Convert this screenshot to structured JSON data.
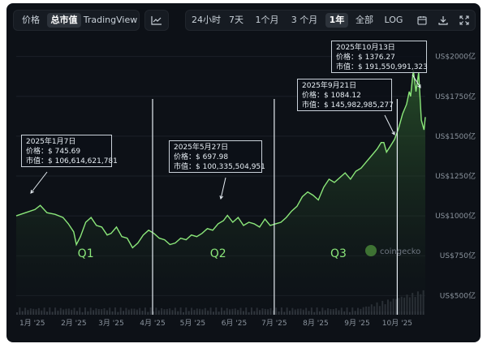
{
  "toolbar": {
    "left_tabs": [
      {
        "label": "价格",
        "active": false
      },
      {
        "label": "总市值",
        "active": true
      },
      {
        "label": "TradingView",
        "active": false
      }
    ],
    "chart_icon": "line-chart-icon",
    "ranges": [
      {
        "label": "24小时",
        "active": false
      },
      {
        "label": "7天",
        "active": false
      },
      {
        "label": "1个月",
        "active": false
      },
      {
        "label": "3 个月",
        "active": false
      },
      {
        "label": "1年",
        "active": true
      },
      {
        "label": "全部",
        "active": false
      },
      {
        "label": "LOG",
        "active": false
      }
    ],
    "icons": [
      "calendar-icon",
      "download-icon",
      "expand-icon"
    ]
  },
  "watermark": "coingecko",
  "quarters": [
    "Q1",
    "Q2",
    "Q3"
  ],
  "annotations": [
    {
      "date": "2025年1月7日",
      "price": "价格：$ 745.69",
      "mcap": "市值：$ 106,614,621,781"
    },
    {
      "date": "2025年5月27日",
      "price": "价格：$ 697.98",
      "mcap": "市值：$ 100,335,504,951"
    },
    {
      "date": "2025年9月21日",
      "price": "价格：$ 1084.12",
      "mcap": "市值：$ 145,982,985,277"
    },
    {
      "date": "2025年10月13日",
      "price": "价格：$ 1376.27",
      "mcap": "市值：$ 191,550,991,323"
    }
  ],
  "colors": {
    "line": "#8be77a",
    "fill": "#2d5a2d",
    "quarter_text": "#8be77a",
    "grid": "#1c2128",
    "axis_text": "#8b949e"
  },
  "chart_data": {
    "type": "area",
    "title": "",
    "xlabel": "",
    "ylabel": "",
    "x_ticks": [
      "1月 '25",
      "2月 '25",
      "3月 '25",
      "4月 '25",
      "5月 '25",
      "6月 '25",
      "7月 '25",
      "8月 '25",
      "9月 '25",
      "10月 '25"
    ],
    "y_ticks": [
      "US$500亿",
      "US$750亿",
      "US$1000亿",
      "US$1250亿",
      "US$1500亿",
      "US$1750亿",
      "US$2000亿"
    ],
    "ylim": [
      400,
      2100
    ],
    "grid": true,
    "quarter_dividers": [
      "2025-04-01",
      "2025-07-01",
      "2025-10-01"
    ],
    "series": [
      {
        "values": [
          [
            "2024-12-20",
            1000
          ],
          [
            "2024-12-27",
            1020
          ],
          [
            "2025-01-03",
            1040
          ],
          [
            "2025-01-07",
            1066
          ],
          [
            "2025-01-12",
            1020
          ],
          [
            "2025-01-18",
            1010
          ],
          [
            "2025-01-24",
            990
          ],
          [
            "2025-01-28",
            950
          ],
          [
            "2025-02-01",
            900
          ],
          [
            "2025-02-03",
            820
          ],
          [
            "2025-02-06",
            870
          ],
          [
            "2025-02-10",
            960
          ],
          [
            "2025-02-14",
            990
          ],
          [
            "2025-02-18",
            940
          ],
          [
            "2025-02-22",
            930
          ],
          [
            "2025-02-26",
            880
          ],
          [
            "2025-03-01",
            890
          ],
          [
            "2025-03-05",
            930
          ],
          [
            "2025-03-09",
            870
          ],
          [
            "2025-03-13",
            860
          ],
          [
            "2025-03-17",
            800
          ],
          [
            "2025-03-21",
            830
          ],
          [
            "2025-03-25",
            880
          ],
          [
            "2025-03-29",
            910
          ],
          [
            "2025-04-02",
            890
          ],
          [
            "2025-04-06",
            860
          ],
          [
            "2025-04-10",
            850
          ],
          [
            "2025-04-14",
            820
          ],
          [
            "2025-04-18",
            830
          ],
          [
            "2025-04-22",
            860
          ],
          [
            "2025-04-26",
            850
          ],
          [
            "2025-04-30",
            880
          ],
          [
            "2025-05-04",
            870
          ],
          [
            "2025-05-08",
            890
          ],
          [
            "2025-05-12",
            920
          ],
          [
            "2025-05-16",
            910
          ],
          [
            "2025-05-20",
            950
          ],
          [
            "2025-05-24",
            970
          ],
          [
            "2025-05-27",
            1003
          ],
          [
            "2025-05-31",
            960
          ],
          [
            "2025-06-04",
            990
          ],
          [
            "2025-06-08",
            940
          ],
          [
            "2025-06-12",
            960
          ],
          [
            "2025-06-16",
            950
          ],
          [
            "2025-06-20",
            930
          ],
          [
            "2025-06-24",
            980
          ],
          [
            "2025-06-28",
            940
          ],
          [
            "2025-07-02",
            950
          ],
          [
            "2025-07-06",
            960
          ],
          [
            "2025-07-10",
            990
          ],
          [
            "2025-07-14",
            1030
          ],
          [
            "2025-07-18",
            1060
          ],
          [
            "2025-07-22",
            1120
          ],
          [
            "2025-07-26",
            1150
          ],
          [
            "2025-07-30",
            1130
          ],
          [
            "2025-08-03",
            1100
          ],
          [
            "2025-08-07",
            1180
          ],
          [
            "2025-08-11",
            1230
          ],
          [
            "2025-08-15",
            1210
          ],
          [
            "2025-08-19",
            1240
          ],
          [
            "2025-08-23",
            1270
          ],
          [
            "2025-08-27",
            1230
          ],
          [
            "2025-08-31",
            1280
          ],
          [
            "2025-09-04",
            1300
          ],
          [
            "2025-09-08",
            1340
          ],
          [
            "2025-09-12",
            1380
          ],
          [
            "2025-09-16",
            1420
          ],
          [
            "2025-09-19",
            1460
          ],
          [
            "2025-09-21",
            1460
          ],
          [
            "2025-09-23",
            1400
          ],
          [
            "2025-09-26",
            1440
          ],
          [
            "2025-09-29",
            1480
          ],
          [
            "2025-10-02",
            1550
          ],
          [
            "2025-10-05",
            1640
          ],
          [
            "2025-10-08",
            1700
          ],
          [
            "2025-10-10",
            1780
          ],
          [
            "2025-10-11",
            1750
          ],
          [
            "2025-10-13",
            1915
          ],
          [
            "2025-10-15",
            1780
          ],
          [
            "2025-10-17",
            1900
          ],
          [
            "2025-10-19",
            1600
          ],
          [
            "2025-10-21",
            1540
          ],
          [
            "2025-10-22",
            1620
          ]
        ]
      }
    ]
  }
}
